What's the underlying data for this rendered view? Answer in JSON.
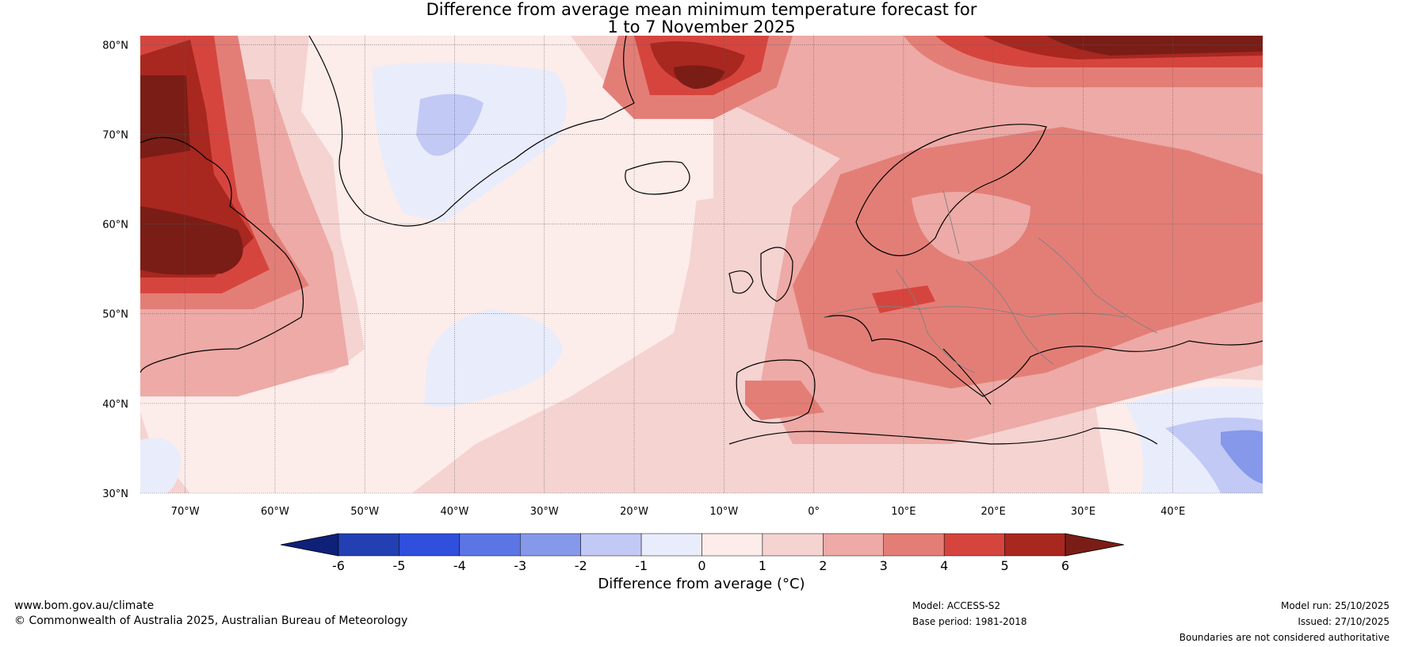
{
  "title": {
    "line1": "Difference from average mean minimum temperature forecast for",
    "line2": "1 to 7 November 2025"
  },
  "map": {
    "lat_labels": [
      "80°N",
      "70°N",
      "60°N",
      "50°N",
      "40°N",
      "30°N"
    ],
    "lon_labels": [
      "70°W",
      "60°W",
      "50°W",
      "40°W",
      "30°W",
      "20°W",
      "10°W",
      "0°",
      "10°E",
      "20°E",
      "30°E",
      "40°E"
    ],
    "lat_values": [
      80,
      70,
      60,
      50,
      40,
      30
    ],
    "lon_values": [
      -70,
      -60,
      -50,
      -40,
      -30,
      -20,
      -10,
      0,
      10,
      20,
      30,
      40
    ],
    "lat_range": [
      30,
      81
    ],
    "lon_range": [
      -75,
      50
    ]
  },
  "colorbar": {
    "ticks": [
      "-6",
      "-5",
      "-4",
      "-3",
      "-2",
      "-1",
      "0",
      "1",
      "2",
      "3",
      "4",
      "5",
      "6"
    ],
    "label": "Difference from average (°C)",
    "colors": [
      "#0f2079",
      "#2240b2",
      "#2f4fdc",
      "#5b75e4",
      "#8598ea",
      "#c2c9f4",
      "#e9ecfb",
      "#fcecea",
      "#f4d3d1",
      "#edaaa6",
      "#e37e77",
      "#d5453e",
      "#a8271f",
      "#7a1d16"
    ]
  },
  "footer": {
    "website": "www.bom.gov.au/climate",
    "copyright": "© Commonwealth of Australia 2025, Australian Bureau of Meteorology",
    "model": "Model: ACCESS-S2",
    "base_period": "Base period: 1981-2018",
    "model_run": "Model run: 25/10/2025",
    "issued": "Issued: 27/10/2025",
    "disclaimer": "Boundaries are not considered authoritative"
  }
}
